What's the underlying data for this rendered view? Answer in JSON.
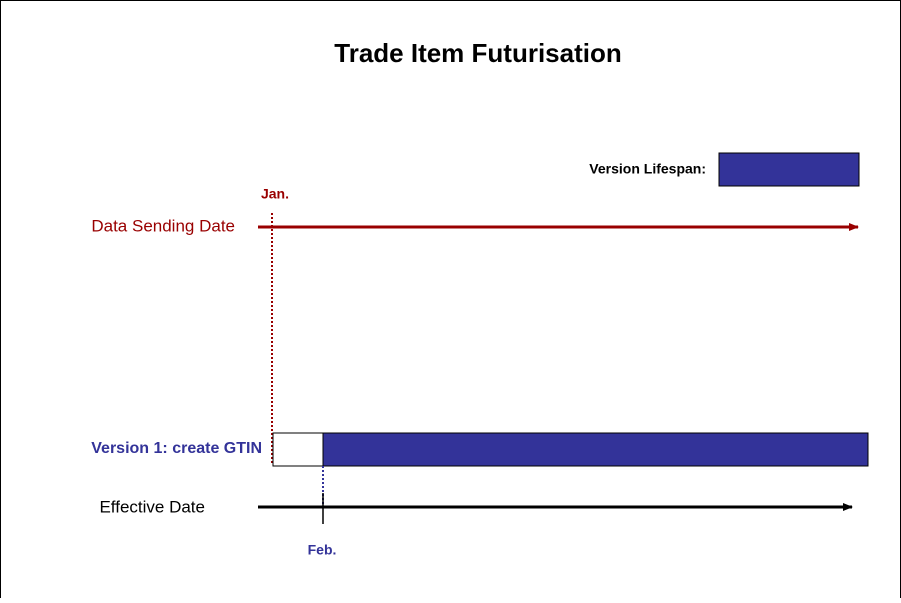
{
  "title": "Trade Item Futurisation",
  "legend": {
    "label": "Version Lifespan:"
  },
  "timelines": {
    "sending": {
      "label": "Data Sending Date",
      "marker": "Jan."
    },
    "effective": {
      "label": "Effective Date",
      "marker": "Feb."
    }
  },
  "versions": [
    {
      "label": "Version 1: create GTIN"
    }
  ]
}
